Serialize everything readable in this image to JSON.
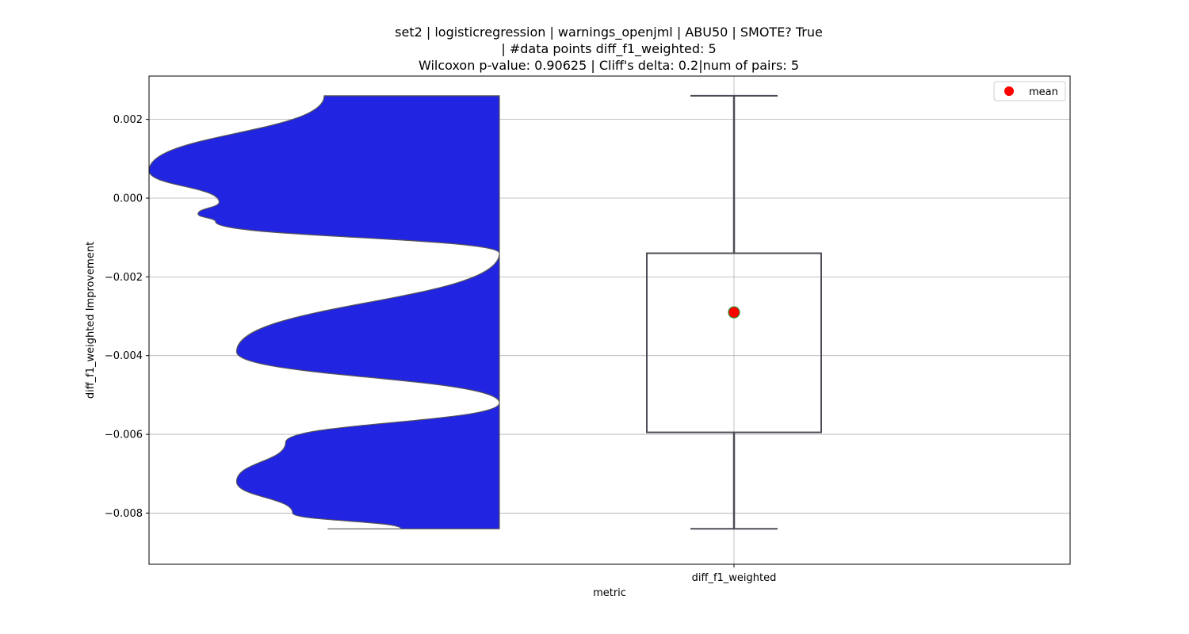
{
  "chart_data": {
    "type": "violin+box",
    "title_lines": [
      "set2 | logisticregression | warnings_openjml | ABU50 | SMOTE? True",
      "| #data points diff_f1_weighted: 5",
      "Wilcoxon p-value: 0.90625 | Cliff's delta: 0.2|num of pairs: 5"
    ],
    "xlabel": "metric",
    "ylabel": "diff_f1_weighted Improvement",
    "categories": [
      "diff_f1_weighted"
    ],
    "ylim": [
      -0.0093,
      0.0031
    ],
    "yticks": [
      0.002,
      0.0,
      -0.002,
      -0.004,
      -0.006,
      -0.008
    ],
    "ytick_labels": [
      "0.002",
      "0.000",
      "−0.002",
      "−0.004",
      "−0.006",
      "−0.008"
    ],
    "grid": true,
    "legend": {
      "position": "top-right",
      "entries": [
        "mean"
      ]
    },
    "box": {
      "whisker_low": -0.0084,
      "q1": -0.00595,
      "q3": -0.0014,
      "whisker_high": 0.0026,
      "mean": -0.0029
    },
    "violin": {
      "side": "left",
      "fill_color": "#2124e0",
      "edge_color": "#555555",
      "range": [
        -0.0084,
        0.0026
      ],
      "profile_x": [
        0.5,
        1.0,
        0.8,
        0.86,
        0.81,
        0.0,
        0.75,
        0.0,
        0.61,
        0.75,
        0.59,
        0.28,
        0.49
      ],
      "profile_y": [
        0.0026,
        0.0007,
        -0.0001,
        -0.0004,
        -0.0006,
        -0.0014,
        -0.0039,
        -0.0052,
        -0.0062,
        -0.0072,
        -0.008,
        -0.0084,
        -0.0084
      ]
    },
    "colors": {
      "mean_fill": "#ff0000",
      "mean_edge": "#2e8b2e",
      "box_edge": "#4d4d57",
      "grid": "#b0b0b0"
    }
  }
}
